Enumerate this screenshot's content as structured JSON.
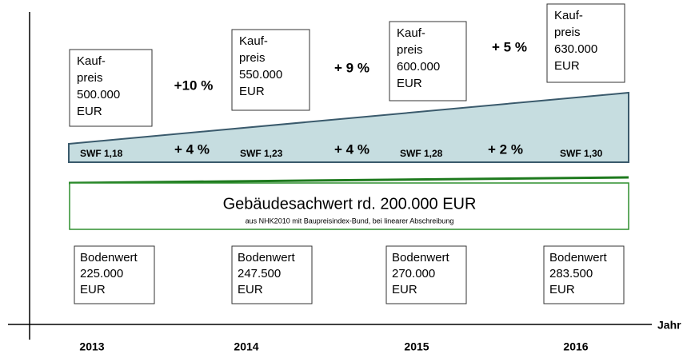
{
  "kaufpreis_boxes": [
    {
      "lines": [
        "Kauf-",
        "preis",
        "500.000",
        "EUR"
      ]
    },
    {
      "lines": [
        "Kauf-",
        "preis",
        "550.000",
        "EUR"
      ]
    },
    {
      "lines": [
        "Kauf-",
        "preis",
        "600.000",
        "EUR"
      ]
    },
    {
      "lines": [
        "Kauf-",
        "preis",
        "630.000",
        "EUR"
      ]
    }
  ],
  "kaufpreis_changes": [
    "+10 %",
    "+ 9 %",
    "+ 5 %"
  ],
  "swf_labels": [
    "SWF 1,18",
    "SWF 1,23",
    "SWF 1,28",
    "SWF 1,30"
  ],
  "swf_changes": [
    "+ 4 %",
    "+ 4 %",
    "+ 2 %"
  ],
  "gebaeude": {
    "title": "Gebäudesachwert   rd. 200.000 EUR",
    "note": "aus NHK2010 mit Baupreisindex-Bund, bei linearer Abschreibung"
  },
  "bodenwert_boxes": [
    {
      "lines": [
        "Bodenwert",
        "225.000",
        "EUR"
      ]
    },
    {
      "lines": [
        "Bodenwert",
        "247.500",
        "EUR"
      ]
    },
    {
      "lines": [
        "Bodenwert",
        "270.000",
        "EUR"
      ]
    },
    {
      "lines": [
        "Bodenwert",
        "283.500",
        "EUR"
      ]
    }
  ],
  "axis": {
    "label": "Jahr",
    "years": [
      "2013",
      "2014",
      "2015",
      "2016"
    ]
  }
}
